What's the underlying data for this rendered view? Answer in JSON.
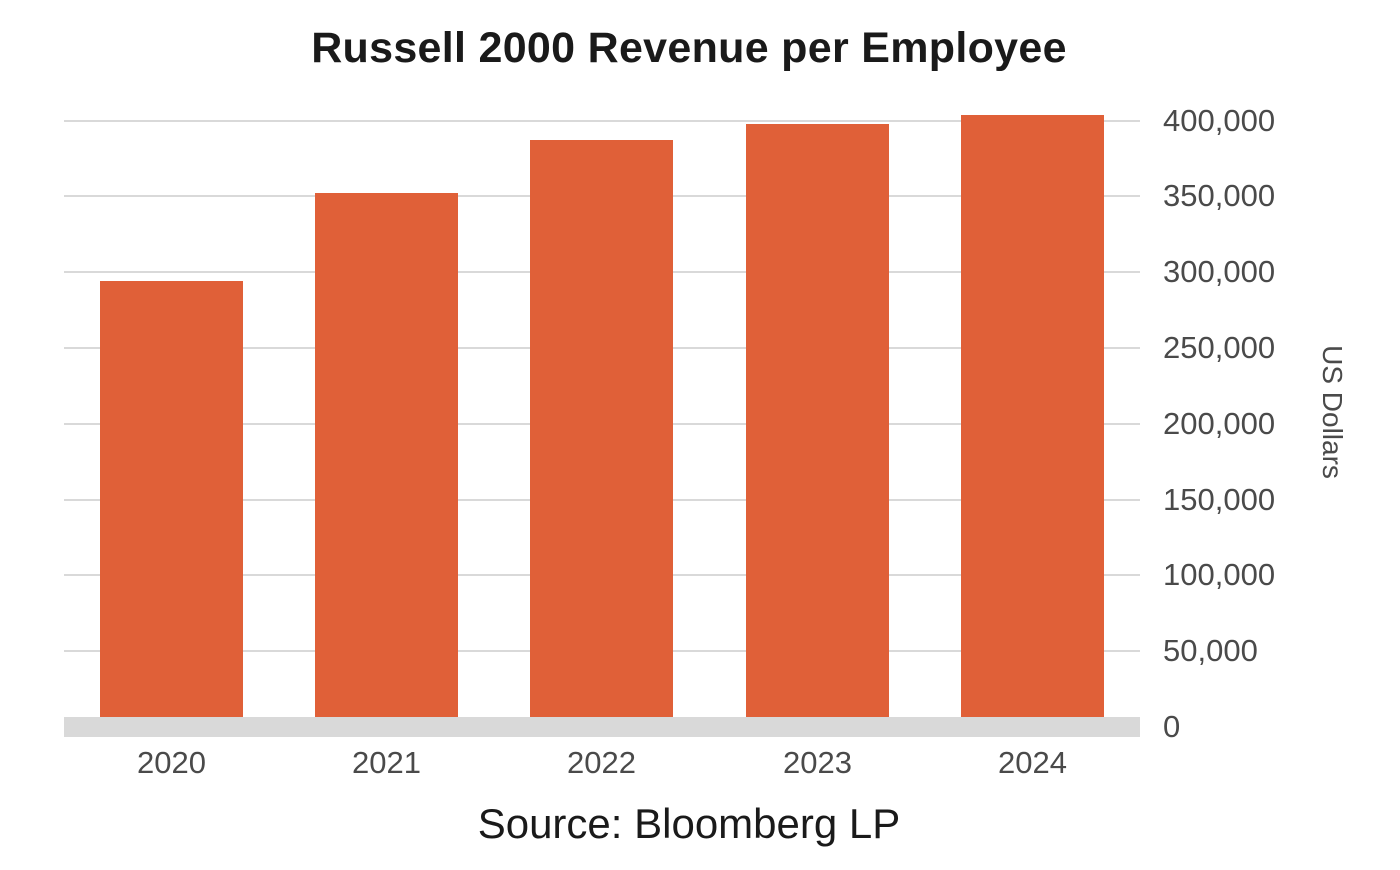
{
  "chart_data": {
    "type": "bar",
    "title": "Russell 2000 Revenue per Employee",
    "categories": [
      "2020",
      "2021",
      "2022",
      "2023",
      "2024"
    ],
    "values": [
      294000,
      352000,
      387000,
      398000,
      404000
    ],
    "xlabel": "",
    "ylabel": "US Dollars",
    "ylim": [
      0,
      400000
    ],
    "yticks": [
      "0",
      "50,000",
      "100,000",
      "150,000",
      "200,000",
      "250,000",
      "300,000",
      "350,000",
      "400,000"
    ],
    "y_axis_position": "right",
    "grid": true,
    "legend": null,
    "bar_color": "#e06038",
    "annotation": "Source: Bloomberg LP"
  },
  "header": {
    "title": "Russell 2000 Revenue per Employee"
  },
  "axis": {
    "ylabel": "US Dollars",
    "yticks": [
      "0",
      "50,000",
      "100,000",
      "150,000",
      "200,000",
      "250,000",
      "300,000",
      "350,000",
      "400,000"
    ],
    "xticks": [
      "2020",
      "2021",
      "2022",
      "2023",
      "2024"
    ]
  },
  "footer": {
    "source": "Source: Bloomberg LP"
  }
}
